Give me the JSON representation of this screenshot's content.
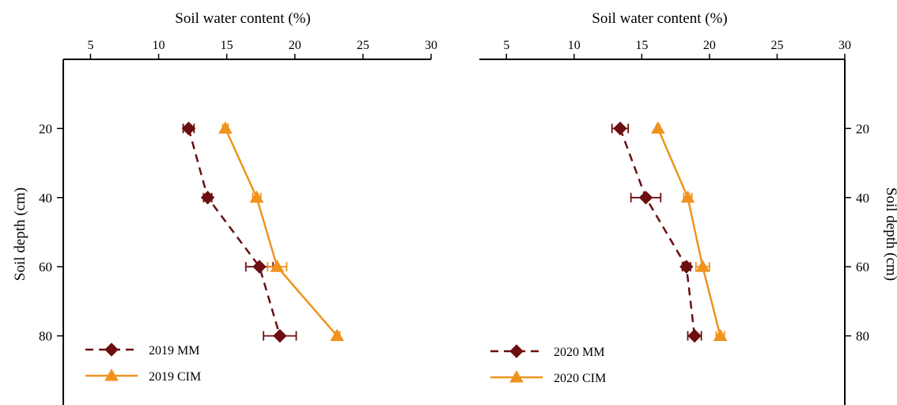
{
  "colors": {
    "mm": "#6b0f10",
    "cim": "#f0931e",
    "axis": "#000000"
  },
  "markers": {
    "mm": "diamond",
    "cim": "triangle"
  },
  "chart_data": [
    {
      "type": "line",
      "xlabel": "Soil water content (%)",
      "ylabel": "Soil depth (cm)",
      "xlim": [
        3,
        30
      ],
      "ylim": [
        100,
        0
      ],
      "xticks": [
        5,
        10,
        15,
        20,
        25,
        30
      ],
      "xtick_labels": [
        "5",
        "10",
        "15",
        "20",
        "25",
        "30"
      ],
      "yticks": [
        20,
        40,
        60,
        80
      ],
      "ytick_labels": [
        "20",
        "40",
        "60",
        "80"
      ],
      "x_axis_position": "top",
      "y_axis_position": "left",
      "grid": false,
      "legend_position": "bottom-left",
      "series": [
        {
          "name": "2019 MM",
          "style": "dashed",
          "marker": "diamond",
          "x": [
            12.2,
            13.6,
            17.4,
            18.9
          ],
          "y": [
            20,
            40,
            60,
            80
          ],
          "err": [
            0.4,
            0.3,
            1.0,
            1.2
          ]
        },
        {
          "name": "2019 CIM",
          "style": "solid",
          "marker": "triangle",
          "x": [
            14.9,
            17.2,
            18.7,
            23.1
          ],
          "y": [
            20,
            40,
            60,
            80
          ],
          "err": [
            0.2,
            0.3,
            0.7,
            0.2
          ]
        }
      ]
    },
    {
      "type": "line",
      "xlabel": "Soil water content (%)",
      "ylabel": "Soil depth (cm)",
      "xlim": [
        3,
        30
      ],
      "ylim": [
        100,
        0
      ],
      "xticks": [
        5,
        10,
        15,
        20,
        25,
        30
      ],
      "xtick_labels": [
        "5",
        "10",
        "15",
        "20",
        "25",
        "30"
      ],
      "yticks": [
        20,
        40,
        60,
        80
      ],
      "ytick_labels": [
        "20",
        "40",
        "60",
        "80"
      ],
      "x_axis_position": "top",
      "y_axis_position": "right",
      "grid": false,
      "legend_position": "bottom-left",
      "series": [
        {
          "name": "2020 MM",
          "style": "dashed",
          "marker": "diamond",
          "x": [
            13.4,
            15.3,
            18.3,
            18.9
          ],
          "y": [
            20,
            40,
            60,
            80
          ],
          "err": [
            0.6,
            1.1,
            0.3,
            0.5
          ]
        },
        {
          "name": "2020 CIM",
          "style": "solid",
          "marker": "triangle",
          "x": [
            16.2,
            18.4,
            19.5,
            20.8
          ],
          "y": [
            20,
            40,
            60,
            80
          ],
          "err": [
            0.1,
            0.3,
            0.5,
            0.3
          ]
        }
      ]
    }
  ]
}
